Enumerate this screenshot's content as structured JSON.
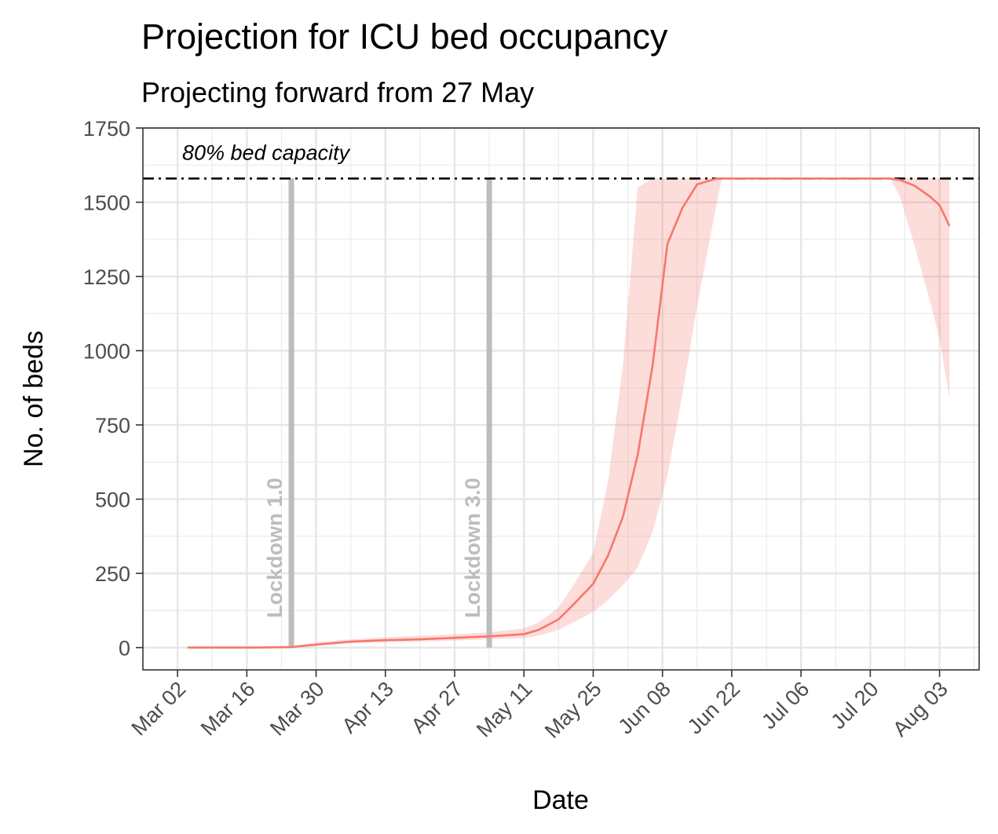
{
  "chart_data": {
    "type": "line",
    "title": "Projection for ICU bed occupancy",
    "subtitle": "Projecting forward from 27 May",
    "xlabel": "Date",
    "ylabel": "No. of beds",
    "x_type": "date",
    "xlim": [
      "2020-02-24",
      "2020-08-11"
    ],
    "ylim": [
      -75,
      1750
    ],
    "x_ticks": [
      {
        "date": "2020-03-02",
        "label": "Mar 02"
      },
      {
        "date": "2020-03-16",
        "label": "Mar 16"
      },
      {
        "date": "2020-03-30",
        "label": "Mar 30"
      },
      {
        "date": "2020-04-13",
        "label": "Apr 13"
      },
      {
        "date": "2020-04-27",
        "label": "Apr 27"
      },
      {
        "date": "2020-05-11",
        "label": "May 11"
      },
      {
        "date": "2020-05-25",
        "label": "May 25"
      },
      {
        "date": "2020-06-08",
        "label": "Jun 08"
      },
      {
        "date": "2020-06-22",
        "label": "Jun 22"
      },
      {
        "date": "2020-07-06",
        "label": "Jul 06"
      },
      {
        "date": "2020-07-20",
        "label": "Jul 20"
      },
      {
        "date": "2020-08-03",
        "label": "Aug 03"
      }
    ],
    "y_ticks": [
      0,
      250,
      500,
      750,
      1000,
      1250,
      1500,
      1750
    ],
    "grid": true,
    "capacity_line": {
      "value": 1580,
      "label": "80% bed capacity",
      "style": "dash-dot",
      "color": "#000000"
    },
    "events": [
      {
        "date": "2020-03-25",
        "label": "Lockdown 1.0",
        "color": "#bdbdbd"
      },
      {
        "date": "2020-05-04",
        "label": "Lockdown 3.0",
        "color": "#bdbdbd"
      }
    ],
    "series": [
      {
        "color": "#f8766d",
        "band_color": "#f8766d",
        "points": [
          {
            "date": "2020-03-04",
            "y": 0,
            "lo": 0,
            "hi": 0
          },
          {
            "date": "2020-03-18",
            "y": 0,
            "lo": 0,
            "hi": 0
          },
          {
            "date": "2020-03-25",
            "y": 2,
            "lo": 0,
            "hi": 3
          },
          {
            "date": "2020-03-30",
            "y": 10,
            "lo": 8,
            "hi": 18
          },
          {
            "date": "2020-04-06",
            "y": 20,
            "lo": 15,
            "hi": 28
          },
          {
            "date": "2020-04-13",
            "y": 25,
            "lo": 18,
            "hi": 35
          },
          {
            "date": "2020-04-20",
            "y": 28,
            "lo": 20,
            "hi": 40
          },
          {
            "date": "2020-04-27",
            "y": 33,
            "lo": 24,
            "hi": 45
          },
          {
            "date": "2020-05-04",
            "y": 38,
            "lo": 28,
            "hi": 52
          },
          {
            "date": "2020-05-11",
            "y": 45,
            "lo": 32,
            "hi": 65
          },
          {
            "date": "2020-05-14",
            "y": 60,
            "lo": 40,
            "hi": 85
          },
          {
            "date": "2020-05-18",
            "y": 95,
            "lo": 60,
            "hi": 135
          },
          {
            "date": "2020-05-21",
            "y": 145,
            "lo": 85,
            "hi": 210
          },
          {
            "date": "2020-05-25",
            "y": 215,
            "lo": 120,
            "hi": 320
          },
          {
            "date": "2020-05-28",
            "y": 310,
            "lo": 160,
            "hi": 560
          },
          {
            "date": "2020-05-31",
            "y": 440,
            "lo": 210,
            "hi": 950
          },
          {
            "date": "2020-06-03",
            "y": 650,
            "lo": 270,
            "hi": 1550
          },
          {
            "date": "2020-06-06",
            "y": 950,
            "lo": 390,
            "hi": 1580
          },
          {
            "date": "2020-06-09",
            "y": 1360,
            "lo": 580,
            "hi": 1580
          },
          {
            "date": "2020-06-12",
            "y": 1480,
            "lo": 850,
            "hi": 1580
          },
          {
            "date": "2020-06-15",
            "y": 1560,
            "lo": 1150,
            "hi": 1580
          },
          {
            "date": "2020-06-19",
            "y": 1580,
            "lo": 1500,
            "hi": 1580
          },
          {
            "date": "2020-06-20",
            "y": 1580,
            "lo": 1580,
            "hi": 1580
          },
          {
            "date": "2020-07-24",
            "y": 1580,
            "lo": 1580,
            "hi": 1580
          },
          {
            "date": "2020-07-26",
            "y": 1575,
            "lo": 1520,
            "hi": 1580
          },
          {
            "date": "2020-07-29",
            "y": 1555,
            "lo": 1350,
            "hi": 1580
          },
          {
            "date": "2020-08-01",
            "y": 1520,
            "lo": 1170,
            "hi": 1580
          },
          {
            "date": "2020-08-03",
            "y": 1490,
            "lo": 1040,
            "hi": 1580
          },
          {
            "date": "2020-08-05",
            "y": 1420,
            "lo": 840,
            "hi": 1580
          }
        ]
      }
    ]
  }
}
